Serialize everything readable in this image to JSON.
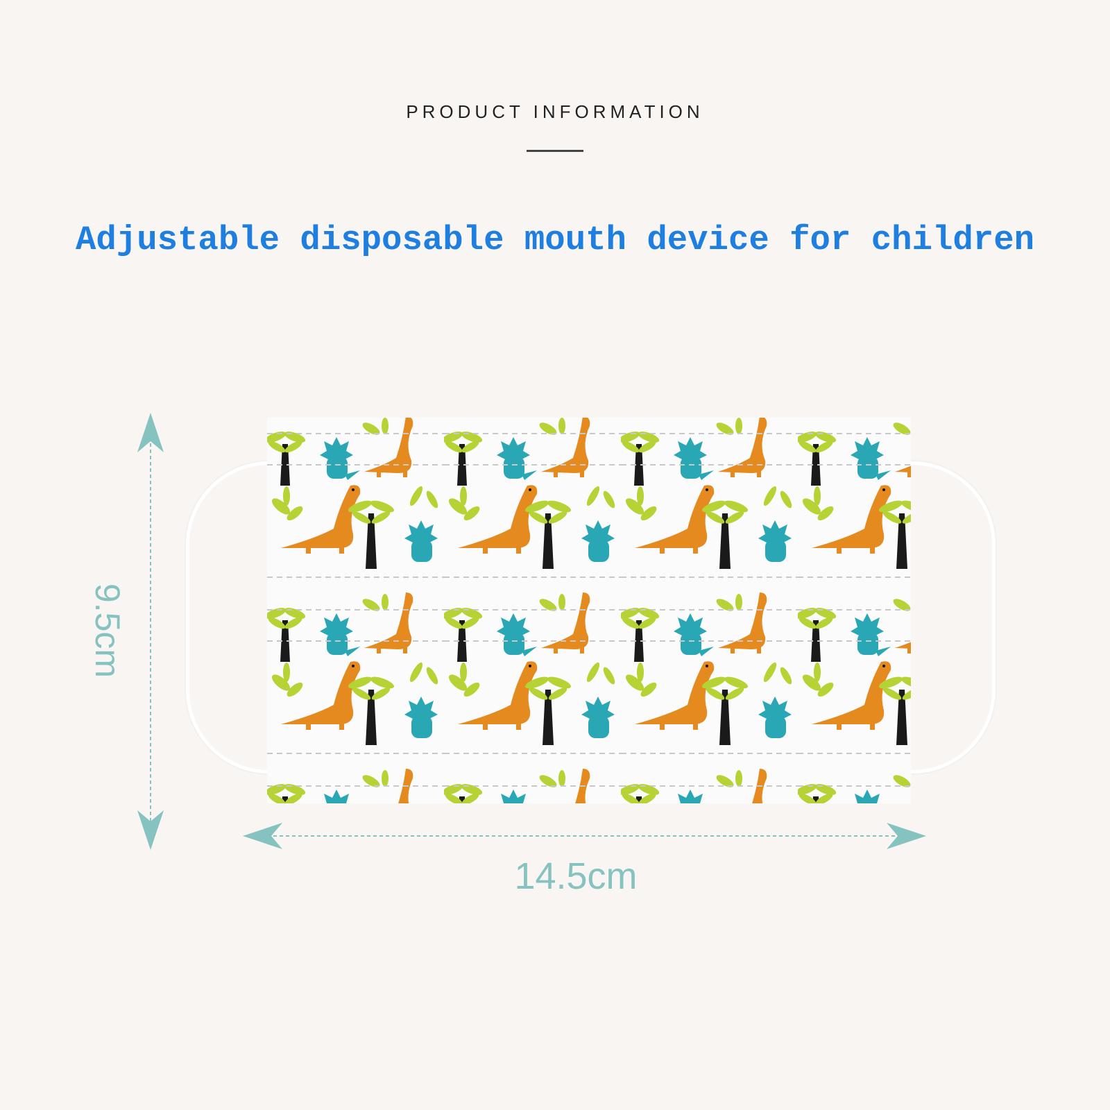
{
  "header": {
    "eyebrow": "PRODUCT INFORMATION",
    "headline": "Adjustable disposable mouth device for children"
  },
  "dimensions": {
    "height_label": "9.5cm",
    "width_label": "14.5cm"
  },
  "colors": {
    "background": "#f8f5f2",
    "headline": "#1e7fe0",
    "dimension": "#86c2bf",
    "dino_orange": "#e58a1f",
    "triceratops_teal": "#2aa7b5",
    "leaf_green": "#b5d334",
    "trunk": "#1a1a1a"
  }
}
